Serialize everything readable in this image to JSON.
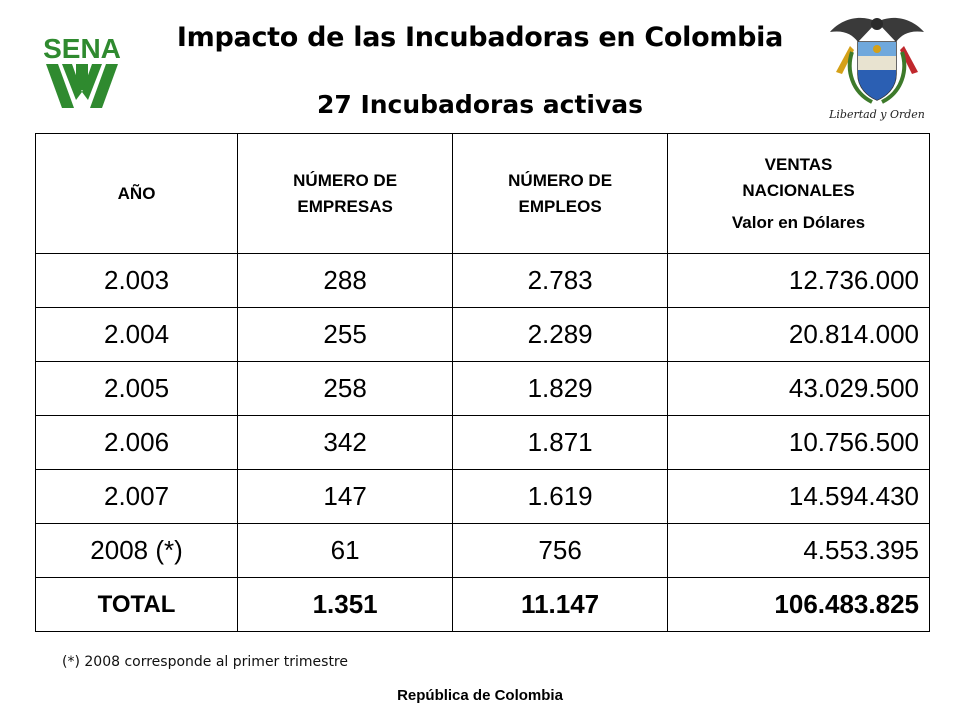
{
  "title": "Impacto de las Incubadoras en Colombia",
  "subtitle": "27 Incubadoras activas",
  "logos": {
    "left": "SENA",
    "right_motto": "Libertad y Orden"
  },
  "table": {
    "headers": {
      "year": "AÑO",
      "companies": "NÚMERO DE EMPRESAS",
      "jobs": "NÚMERO DE EMPLEOS",
      "sales_line1": "VENTAS NACIONALES",
      "sales_line2": "Valor en Dólares"
    },
    "rows": [
      {
        "year": "2.003",
        "companies": "288",
        "jobs": "2.783",
        "sales": "12.736.000"
      },
      {
        "year": "2.004",
        "companies": "255",
        "jobs": "2.289",
        "sales": "20.814.000"
      },
      {
        "year": "2.005",
        "companies": "258",
        "jobs": "1.829",
        "sales": "43.029.500"
      },
      {
        "year": "2.006",
        "companies": "342",
        "jobs": "1.871",
        "sales": "10.756.500"
      },
      {
        "year": "2.007",
        "companies": "147",
        "jobs": "1.619",
        "sales": "14.594.430"
      },
      {
        "year": "2008 (*)",
        "companies": "61",
        "jobs": "756",
        "sales": "4.553.395"
      }
    ],
    "total": {
      "label": "TOTAL",
      "companies": "1.351",
      "jobs": "11.147",
      "sales": "106.483.825"
    }
  },
  "footnote": "(*) 2008 corresponde al primer trimestre",
  "footer": "República de Colombia",
  "colors": {
    "sena_green": "#2f8a2f",
    "shield_gold": "#d4a017",
    "shield_blue": "#2b5fb3",
    "shield_red": "#c0282d"
  }
}
